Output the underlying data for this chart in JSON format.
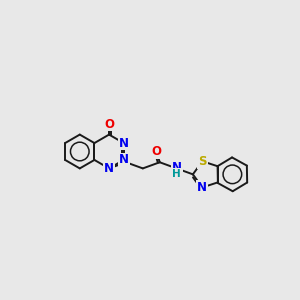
{
  "background_color": "#e8e8e8",
  "figure_size": [
    3.0,
    3.0
  ],
  "dpi": 100,
  "bond_color": "#1a1a1a",
  "bond_width": 1.4,
  "atom_colors": {
    "N": "#0000ee",
    "O": "#ee0000",
    "S": "#bbaa00",
    "C": "#1a1a1a",
    "H": "#009999"
  },
  "font_size": 8.5,
  "font_size_h": 7.5,
  "xlim": [
    0,
    11
  ],
  "ylim": [
    2.5,
    8.5
  ]
}
